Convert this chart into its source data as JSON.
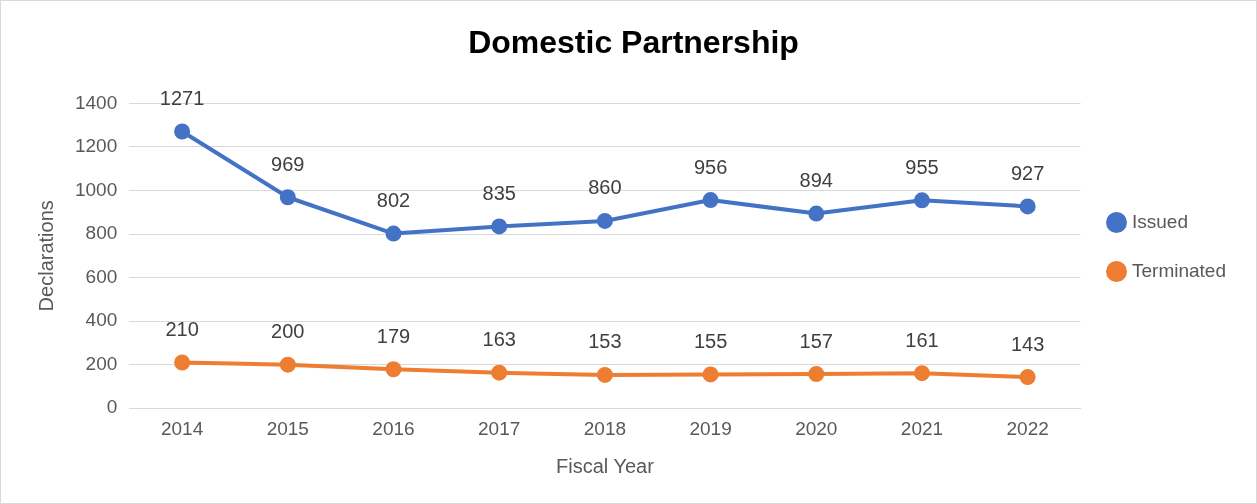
{
  "chart_data": {
    "type": "line",
    "title": "Domestic Partnership",
    "xlabel": "Fiscal Year",
    "ylabel": "Declarations",
    "categories": [
      "2014",
      "2015",
      "2016",
      "2017",
      "2018",
      "2019",
      "2020",
      "2021",
      "2022"
    ],
    "series": [
      {
        "name": "Issued",
        "color": "#4472c4",
        "values": [
          1271,
          969,
          802,
          835,
          860,
          956,
          894,
          955,
          927
        ]
      },
      {
        "name": "Terminated",
        "color": "#ed7d31",
        "values": [
          210,
          200,
          179,
          163,
          153,
          155,
          157,
          161,
          143
        ]
      }
    ],
    "ylim": [
      0,
      1400
    ],
    "yticks": [
      0,
      200,
      400,
      600,
      800,
      1000,
      1200,
      1400
    ],
    "grid": "y",
    "legend": "right",
    "marker": "circle",
    "line_style": "solid",
    "data_labels": true
  }
}
